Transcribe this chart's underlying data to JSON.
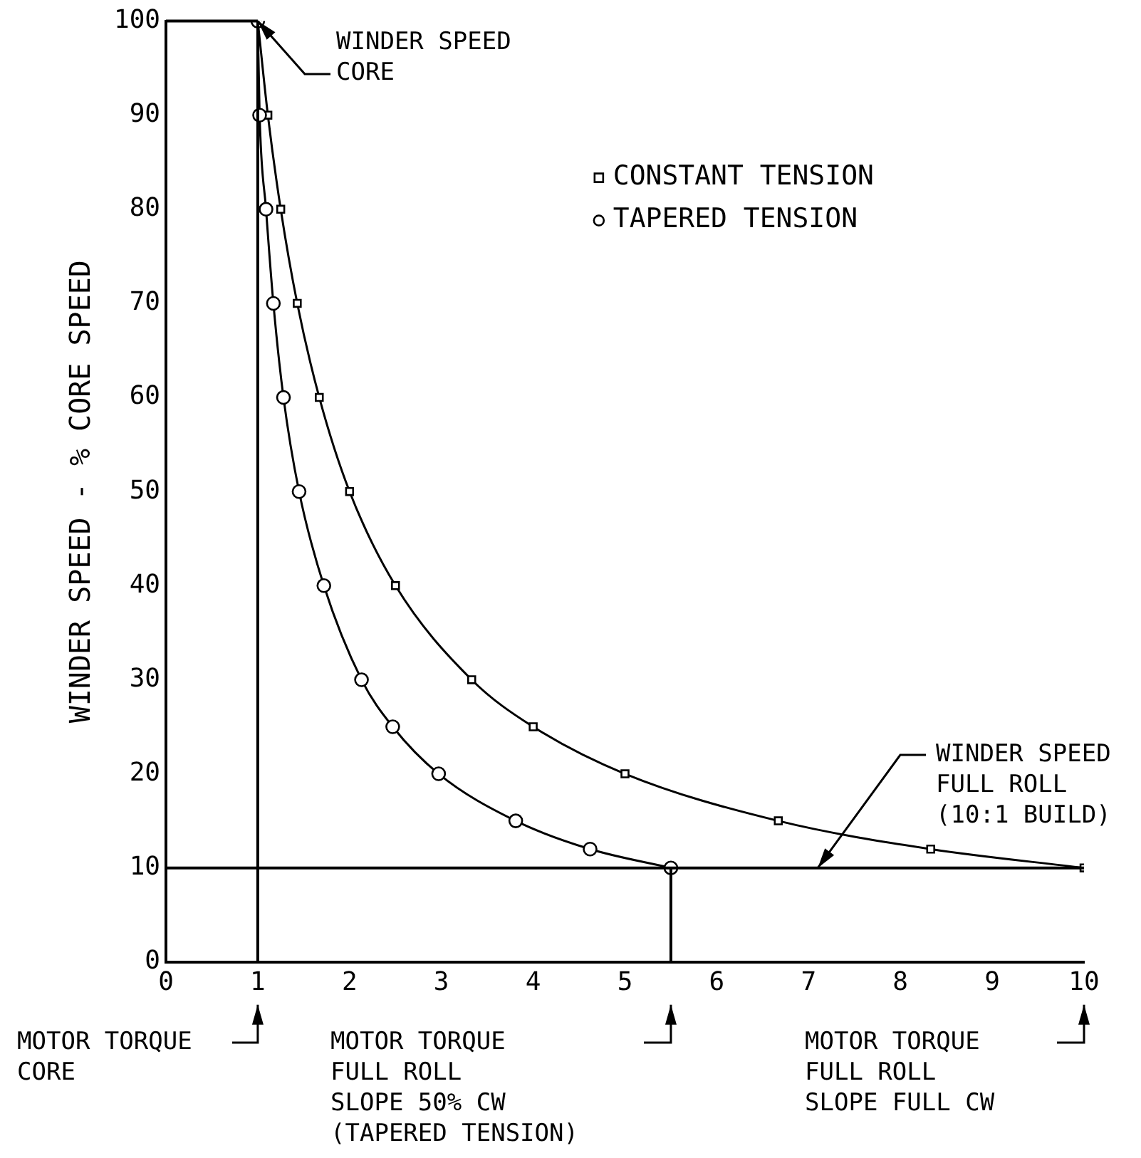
{
  "chart_data": {
    "type": "line",
    "ylabel": "WINDER SPEED - % CORE SPEED",
    "xlim": [
      0,
      10
    ],
    "xticks": [
      0,
      1,
      2,
      3,
      4,
      5,
      6,
      7,
      8,
      9,
      10
    ],
    "ylim": [
      0,
      100
    ],
    "yticks": [
      0,
      10,
      20,
      30,
      40,
      50,
      60,
      70,
      80,
      90,
      100
    ],
    "grid": false,
    "legend": "top right",
    "series": [
      {
        "name": "CONSTANT TENSION",
        "color": "#000000",
        "marker": "square",
        "x": [
          1,
          1.11,
          1.25,
          1.43,
          1.67,
          2,
          2.5,
          3.33,
          4,
          5,
          6.67,
          8.33,
          10
        ],
        "values": [
          100,
          90,
          80,
          70,
          60,
          50,
          40,
          30,
          25,
          20,
          15,
          12,
          10
        ]
      },
      {
        "name": "TAPERED TENSION",
        "color": "#000000",
        "marker": "circle",
        "x": [
          1,
          1.02,
          1.09,
          1.17,
          1.28,
          1.45,
          1.72,
          2.13,
          2.47,
          2.97,
          3.81,
          4.62,
          5.5
        ],
        "values": [
          100,
          90,
          80,
          70,
          60,
          50,
          40,
          30,
          25,
          20,
          15,
          12,
          10
        ]
      }
    ],
    "ref_lines": [
      {
        "axis": "x",
        "value": 1,
        "color": "#000000"
      },
      {
        "axis": "x",
        "value": 5.5,
        "color": "#000000"
      },
      {
        "axis": "y",
        "value": 10,
        "color": "#000000"
      },
      {
        "axis": "y",
        "value": 100,
        "color": "#000000"
      }
    ],
    "annotations": [
      {
        "text": "WINDER SPEED\nCORE",
        "x": 1,
        "y": 100
      },
      {
        "text": "WINDER SPEED\nFULL ROLL\n(10:1 BUILD)",
        "x": 7.1,
        "y": 10
      },
      "MOTOR TORQUE\nCORE",
      "MOTOR TORQUE\nFULL ROLL\nSLOPE 50% CW\n(TAPERED TENSION)",
      "MOTOR TORQUE\nFULL ROLL\nSLOPE FULL CW"
    ]
  }
}
